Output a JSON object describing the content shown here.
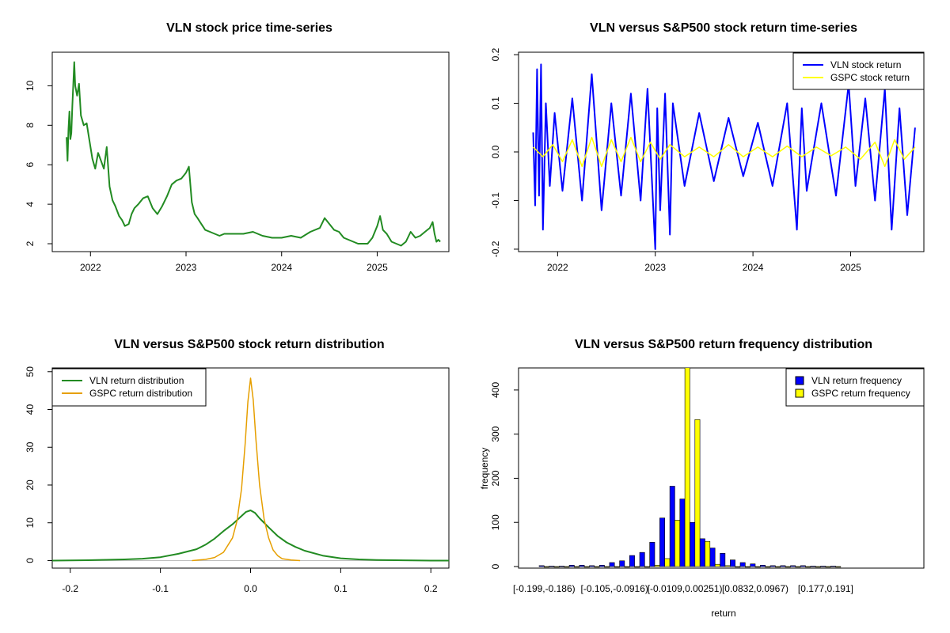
{
  "colors": {
    "price": "#228B22",
    "vln_return": "#0000FF",
    "gspc_return": "#FFFF00",
    "vln_density": "#228B22",
    "gspc_density": "#E69F00",
    "vln_hist": "#0000FF",
    "gspc_hist": "#FFFF00",
    "axis": "#000000",
    "baseline": "#BEBEBE"
  },
  "chart_data": [
    {
      "id": "price",
      "type": "line",
      "title": "VLN stock price time-series",
      "xlabel": "",
      "ylabel": "",
      "xlim": [
        2021.6,
        2025.75
      ],
      "ylim": [
        1.6,
        11.7
      ],
      "x_ticks": [
        2022,
        2023,
        2024,
        2025
      ],
      "x_tick_labels": [
        "2022",
        "2023",
        "2024",
        "2025"
      ],
      "y_ticks": [
        2,
        4,
        6,
        8,
        10
      ],
      "y_tick_labels": [
        "2",
        "4",
        "6",
        "8",
        "10"
      ],
      "series": [
        {
          "name": "VLN price",
          "x": [
            2021.75,
            2021.76,
            2021.77,
            2021.78,
            2021.79,
            2021.8,
            2021.81,
            2021.83,
            2021.84,
            2021.86,
            2021.88,
            2021.9,
            2021.93,
            2021.96,
            2021.99,
            2022.02,
            2022.05,
            2022.08,
            2022.11,
            2022.14,
            2022.17,
            2022.2,
            2022.23,
            2022.26,
            2022.3,
            2022.33,
            2022.36,
            2022.4,
            2022.43,
            2022.46,
            2022.5,
            2022.55,
            2022.6,
            2022.65,
            2022.7,
            2022.75,
            2022.8,
            2022.85,
            2022.9,
            2022.95,
            2023.0,
            2023.03,
            2023.06,
            2023.09,
            2023.12,
            2023.16,
            2023.2,
            2023.25,
            2023.3,
            2023.35,
            2023.4,
            2023.5,
            2023.6,
            2023.7,
            2023.8,
            2023.9,
            2024.0,
            2024.1,
            2024.2,
            2024.3,
            2024.4,
            2024.45,
            2024.5,
            2024.55,
            2024.6,
            2024.65,
            2024.7,
            2024.8,
            2024.9,
            2024.95,
            2025.0,
            2025.03,
            2025.06,
            2025.1,
            2025.15,
            2025.2,
            2025.25,
            2025.3,
            2025.35,
            2025.4,
            2025.45,
            2025.5,
            2025.55,
            2025.58,
            2025.6,
            2025.62,
            2025.64,
            2025.66
          ],
          "y": [
            7.4,
            6.2,
            7.8,
            8.7,
            7.3,
            7.6,
            9.0,
            11.2,
            10.0,
            9.5,
            10.1,
            8.5,
            8.0,
            8.1,
            7.2,
            6.3,
            5.8,
            6.6,
            6.2,
            5.8,
            6.9,
            4.9,
            4.2,
            3.9,
            3.4,
            3.2,
            2.9,
            3.0,
            3.5,
            3.8,
            4.0,
            4.3,
            4.4,
            3.8,
            3.5,
            3.9,
            4.4,
            5.0,
            5.2,
            5.3,
            5.6,
            5.9,
            4.1,
            3.5,
            3.3,
            3.0,
            2.7,
            2.6,
            2.5,
            2.4,
            2.5,
            2.5,
            2.5,
            2.6,
            2.4,
            2.3,
            2.3,
            2.4,
            2.3,
            2.6,
            2.8,
            3.3,
            3.0,
            2.7,
            2.6,
            2.3,
            2.2,
            2.0,
            2.0,
            2.3,
            2.9,
            3.4,
            2.7,
            2.5,
            2.1,
            2.0,
            1.9,
            2.1,
            2.6,
            2.3,
            2.4,
            2.6,
            2.8,
            3.1,
            2.5,
            2.1,
            2.2,
            2.1
          ]
        }
      ]
    },
    {
      "id": "returns",
      "type": "line",
      "title": "VLN versus S&P500 stock return time-series",
      "xlabel": "",
      "ylabel": "",
      "xlim": [
        2021.6,
        2025.75
      ],
      "ylim": [
        -0.205,
        0.205
      ],
      "x_ticks": [
        2022,
        2023,
        2024,
        2025
      ],
      "x_tick_labels": [
        "2022",
        "2023",
        "2024",
        "2025"
      ],
      "y_ticks": [
        -0.2,
        -0.1,
        0.0,
        0.1,
        0.2
      ],
      "y_tick_labels": [
        "-0.2",
        "-0.1",
        "0.0",
        "0.1",
        "0.2"
      ],
      "legend": {
        "position": "top-right",
        "entries": [
          "VLN stock return",
          "GSPC stock return"
        ]
      },
      "series": [
        {
          "name": "VLN stock return",
          "x": [
            2021.75,
            2021.77,
            2021.79,
            2021.81,
            2021.83,
            2021.85,
            2021.88,
            2021.92,
            2021.97,
            2022.05,
            2022.15,
            2022.25,
            2022.35,
            2022.45,
            2022.55,
            2022.65,
            2022.75,
            2022.85,
            2022.92,
            2023.0,
            2023.02,
            2023.05,
            2023.1,
            2023.15,
            2023.18,
            2023.3,
            2023.45,
            2023.6,
            2023.75,
            2023.9,
            2024.05,
            2024.2,
            2024.35,
            2024.45,
            2024.5,
            2024.55,
            2024.7,
            2024.85,
            2024.98,
            2025.05,
            2025.15,
            2025.25,
            2025.35,
            2025.42,
            2025.5,
            2025.58,
            2025.66
          ],
          "y": [
            0.04,
            -0.11,
            0.17,
            -0.09,
            0.18,
            -0.16,
            0.1,
            -0.07,
            0.08,
            -0.08,
            0.11,
            -0.1,
            0.16,
            -0.12,
            0.1,
            -0.09,
            0.12,
            -0.1,
            0.13,
            -0.2,
            0.09,
            -0.12,
            0.12,
            -0.17,
            0.1,
            -0.07,
            0.08,
            -0.06,
            0.07,
            -0.05,
            0.06,
            -0.07,
            0.1,
            -0.16,
            0.09,
            -0.08,
            0.1,
            -0.09,
            0.14,
            -0.07,
            0.11,
            -0.1,
            0.13,
            -0.16,
            0.09,
            -0.13,
            0.05
          ]
        },
        {
          "name": "GSPC stock return",
          "x": [
            2021.75,
            2021.85,
            2021.95,
            2022.05,
            2022.15,
            2022.25,
            2022.35,
            2022.45,
            2022.55,
            2022.65,
            2022.75,
            2022.85,
            2022.95,
            2023.05,
            2023.15,
            2023.3,
            2023.45,
            2023.6,
            2023.75,
            2023.9,
            2024.05,
            2024.2,
            2024.35,
            2024.5,
            2024.65,
            2024.8,
            2024.95,
            2025.1,
            2025.25,
            2025.35,
            2025.45,
            2025.55,
            2025.66
          ],
          "y": [
            0.01,
            -0.01,
            0.015,
            -0.02,
            0.025,
            -0.03,
            0.03,
            -0.03,
            0.025,
            -0.02,
            0.03,
            -0.02,
            0.02,
            -0.015,
            0.015,
            -0.01,
            0.01,
            -0.01,
            0.015,
            -0.01,
            0.01,
            -0.01,
            0.012,
            -0.01,
            0.01,
            -0.008,
            0.01,
            -0.015,
            0.02,
            -0.03,
            0.025,
            -0.015,
            0.01
          ]
        }
      ]
    },
    {
      "id": "density",
      "type": "line",
      "title": "VLN versus S&P500 stock return distribution",
      "xlabel": "",
      "ylabel": "",
      "xlim": [
        -0.22,
        0.22
      ],
      "ylim": [
        -2,
        51
      ],
      "x_ticks": [
        -0.2,
        -0.1,
        0.0,
        0.1,
        0.2
      ],
      "x_tick_labels": [
        "-0.2",
        "-0.1",
        "0.0",
        "0.1",
        "0.2"
      ],
      "y_ticks": [
        0,
        10,
        20,
        30,
        40,
        50
      ],
      "y_tick_labels": [
        "0",
        "10",
        "20",
        "30",
        "40",
        "50"
      ],
      "legend": {
        "position": "top-left",
        "entries": [
          "VLN return distribution",
          "GSPC return distribution"
        ]
      },
      "series": [
        {
          "name": "VLN return distribution",
          "x": [
            -0.22,
            -0.2,
            -0.18,
            -0.16,
            -0.14,
            -0.12,
            -0.1,
            -0.08,
            -0.06,
            -0.05,
            -0.04,
            -0.03,
            -0.02,
            -0.01,
            -0.005,
            0.0,
            0.005,
            0.01,
            0.02,
            0.03,
            0.04,
            0.05,
            0.06,
            0.08,
            0.1,
            0.12,
            0.14,
            0.16,
            0.18,
            0.2,
            0.22
          ],
          "y": [
            0.0,
            0.05,
            0.1,
            0.2,
            0.3,
            0.5,
            0.9,
            1.8,
            3.0,
            4.2,
            5.8,
            7.8,
            9.6,
            11.8,
            12.9,
            13.3,
            12.6,
            11.2,
            8.8,
            6.5,
            4.8,
            3.6,
            2.6,
            1.3,
            0.6,
            0.3,
            0.15,
            0.1,
            0.05,
            0.0,
            0.0
          ]
        },
        {
          "name": "GSPC return distribution",
          "x": [
            -0.065,
            -0.05,
            -0.04,
            -0.03,
            -0.02,
            -0.015,
            -0.01,
            -0.006,
            -0.003,
            0.0,
            0.003,
            0.006,
            0.01,
            0.015,
            0.02,
            0.025,
            0.03,
            0.035,
            0.045,
            0.055
          ],
          "y": [
            0.0,
            0.3,
            0.8,
            2.2,
            6.0,
            10.5,
            19.0,
            31.0,
            42.0,
            48.3,
            42.5,
            32.0,
            20.0,
            11.0,
            6.0,
            2.8,
            1.3,
            0.5,
            0.15,
            0.0
          ]
        }
      ]
    },
    {
      "id": "histogram",
      "type": "bar",
      "title": "VLN versus S&P500 return frequency distribution",
      "xlabel": "return",
      "ylabel": "frequency",
      "ylim": [
        0,
        450
      ],
      "y_ticks": [
        0,
        100,
        200,
        300,
        400
      ],
      "y_tick_labels": [
        "0",
        "100",
        "200",
        "300",
        "400"
      ],
      "x_tick_labels": [
        "[-0.199,-0.186)",
        "[-0.105,-0.0916)",
        "[-0.0109,0.00251)",
        "[0.0832,0.0967)",
        "[0.177,0.191]"
      ],
      "x_tick_bins": [
        0,
        7,
        14,
        21,
        28
      ],
      "legend": {
        "position": "top-right",
        "entries": [
          "VLN return frequency",
          "GSPC return frequency"
        ]
      },
      "series": [
        {
          "name": "VLN return frequency",
          "values": [
            2,
            1,
            1,
            3,
            3,
            2,
            3,
            9,
            13,
            25,
            32,
            55,
            110,
            182,
            153,
            100,
            63,
            42,
            30,
            15,
            9,
            6,
            3,
            2,
            2,
            2,
            2,
            1,
            1,
            1
          ]
        },
        {
          "name": "GSPC return frequency",
          "values": [
            0,
            0,
            0,
            0,
            0,
            0,
            0,
            0,
            0,
            0,
            0,
            3,
            18,
            105,
            462,
            333,
            57,
            5,
            2,
            0,
            0,
            0,
            0,
            0,
            0,
            0,
            0,
            0,
            0,
            0
          ]
        }
      ]
    }
  ]
}
